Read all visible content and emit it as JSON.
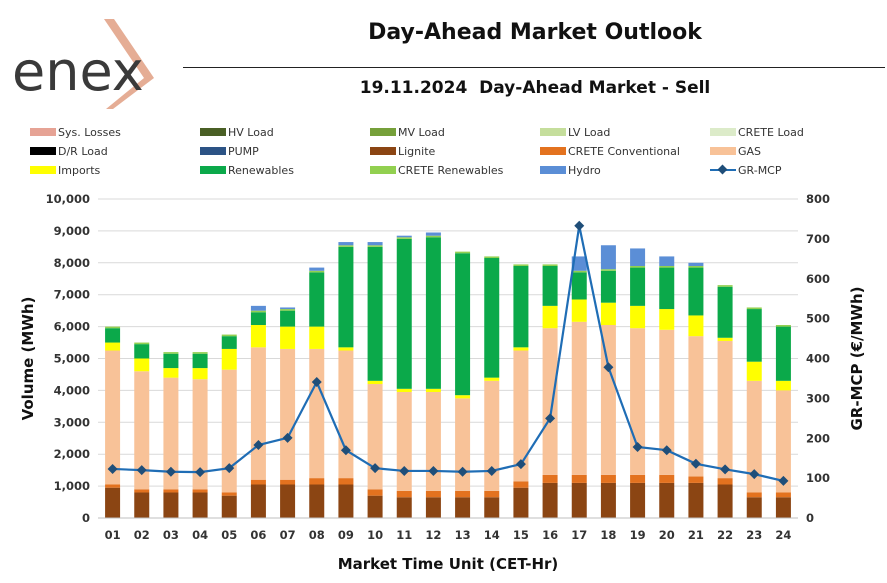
{
  "header": {
    "logo_text": "enex",
    "title": "Day-Ahead Market Outlook",
    "subtitle": "19.11.2024  Day-Ahead Market - Sell"
  },
  "legend": [
    {
      "name": "Sys. Losses",
      "color": "#e6a395",
      "type": "bar"
    },
    {
      "name": "HV Load",
      "color": "#4a5f25",
      "type": "bar"
    },
    {
      "name": "MV Load",
      "color": "#76a03a",
      "type": "bar"
    },
    {
      "name": "LV Load",
      "color": "#c5de9c",
      "type": "bar"
    },
    {
      "name": "CRETE Load",
      "color": "#dcebc9",
      "type": "bar"
    },
    {
      "name": "D/R Load",
      "color": "#000000",
      "type": "bar"
    },
    {
      "name": "PUMP",
      "color": "#2c5385",
      "type": "bar"
    },
    {
      "name": "Lignite",
      "color": "#8b4513",
      "type": "bar"
    },
    {
      "name": "CRETE Conventional",
      "color": "#e3721f",
      "type": "bar"
    },
    {
      "name": "GAS",
      "color": "#f8c298",
      "type": "bar"
    },
    {
      "name": "Imports",
      "color": "#ffff00",
      "type": "bar"
    },
    {
      "name": "Renewables",
      "color": "#0ba94a",
      "type": "bar"
    },
    {
      "name": "CRETE Renewables",
      "color": "#92d050",
      "type": "bar"
    },
    {
      "name": "Hydro",
      "color": "#5b8ed6",
      "type": "bar"
    },
    {
      "name": "GR-MCP",
      "color": "#1f6db5",
      "type": "line"
    }
  ],
  "chart_data": {
    "type": "bar",
    "stacked": true,
    "title": "19.11.2024  Day-Ahead Market - Sell",
    "xlabel": "Market Time Unit (CET-Hr)",
    "ylabel": "Volume (MWh)",
    "y2label": "GR-MCP (€/MWh)",
    "ylim": [
      0,
      10000
    ],
    "y2lim": [
      0,
      800
    ],
    "yticks": [
      "0",
      "1,000",
      "2,000",
      "3,000",
      "4,000",
      "5,000",
      "6,000",
      "7,000",
      "8,000",
      "9,000",
      "10,000"
    ],
    "y2ticks": [
      "0",
      "100",
      "200",
      "300",
      "400",
      "500",
      "600",
      "700",
      "800"
    ],
    "categories": [
      "01",
      "02",
      "03",
      "04",
      "05",
      "06",
      "07",
      "08",
      "09",
      "10",
      "11",
      "12",
      "13",
      "14",
      "15",
      "16",
      "17",
      "18",
      "19",
      "20",
      "21",
      "22",
      "23",
      "24"
    ],
    "series": [
      {
        "name": "Lignite",
        "color": "#8b4513",
        "values": [
          950,
          800,
          800,
          800,
          700,
          1050,
          1050,
          1050,
          1050,
          700,
          650,
          650,
          650,
          650,
          950,
          1100,
          1100,
          1100,
          1100,
          1100,
          1100,
          1050,
          650,
          650
        ]
      },
      {
        "name": "CRETE Conventional",
        "color": "#e3721f",
        "values": [
          100,
          100,
          100,
          100,
          100,
          150,
          150,
          200,
          200,
          200,
          200,
          200,
          200,
          200,
          200,
          250,
          250,
          250,
          250,
          250,
          200,
          200,
          150,
          150
        ]
      },
      {
        "name": "GAS",
        "color": "#f8c298",
        "values": [
          4200,
          3700,
          3500,
          3450,
          3850,
          4150,
          4100,
          4050,
          4000,
          3300,
          3100,
          3100,
          2900,
          3450,
          4100,
          4600,
          4800,
          4700,
          4600,
          4550,
          4400,
          4300,
          3500,
          3200
        ]
      },
      {
        "name": "Imports",
        "color": "#ffff00",
        "values": [
          250,
          400,
          300,
          350,
          650,
          700,
          700,
          700,
          100,
          100,
          100,
          100,
          100,
          100,
          100,
          700,
          700,
          700,
          700,
          650,
          650,
          100,
          600,
          300
        ]
      },
      {
        "name": "Renewables",
        "color": "#0ba94a",
        "values": [
          450,
          450,
          450,
          450,
          400,
          400,
          500,
          1700,
          3150,
          4200,
          4700,
          4750,
          4450,
          3750,
          2550,
          1250,
          850,
          1000,
          1200,
          1300,
          1500,
          1600,
          1650,
          1700
        ]
      },
      {
        "name": "CRETE Renewables",
        "color": "#92d050",
        "values": [
          50,
          50,
          50,
          50,
          50,
          50,
          50,
          50,
          50,
          50,
          50,
          50,
          50,
          50,
          50,
          50,
          50,
          50,
          50,
          50,
          50,
          50,
          50,
          50
        ]
      },
      {
        "name": "Hydro",
        "color": "#5b8ed6",
        "values": [
          0,
          0,
          0,
          0,
          0,
          150,
          50,
          100,
          100,
          100,
          50,
          100,
          0,
          0,
          0,
          0,
          450,
          750,
          550,
          300,
          100,
          0,
          0,
          0
        ]
      }
    ],
    "line": {
      "name": "GR-MCP",
      "color": "#1f6db5",
      "axis": "right",
      "values": [
        123,
        120,
        116,
        115,
        125,
        183,
        201,
        341,
        170,
        125,
        118,
        118,
        116,
        118,
        135,
        250,
        733,
        378,
        178,
        170,
        136,
        122,
        110,
        93
      ]
    }
  }
}
